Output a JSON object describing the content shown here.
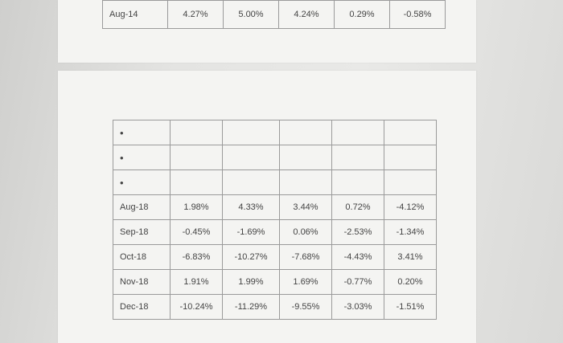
{
  "top_row": {
    "label": "Aug-14",
    "values": [
      "4.27%",
      "5.00%",
      "4.24%",
      "0.29%",
      "-0.58%"
    ]
  },
  "bullets": [
    "•",
    "•",
    "•"
  ],
  "rows": [
    {
      "label": "Aug-18",
      "values": [
        "1.98%",
        "4.33%",
        "3.44%",
        "0.72%",
        "-4.12%"
      ]
    },
    {
      "label": "Sep-18",
      "values": [
        "-0.45%",
        "-1.69%",
        "0.06%",
        "-2.53%",
        "-1.34%"
      ]
    },
    {
      "label": "Oct-18",
      "values": [
        "-6.83%",
        "-10.27%",
        "-7.68%",
        "-4.43%",
        "3.41%"
      ]
    },
    {
      "label": "Nov-18",
      "values": [
        "1.91%",
        "1.99%",
        "1.69%",
        "-0.77%",
        "0.20%"
      ]
    },
    {
      "label": "Dec-18",
      "values": [
        "-10.24%",
        "-11.29%",
        "-9.55%",
        "-3.03%",
        "-1.51%"
      ]
    }
  ]
}
